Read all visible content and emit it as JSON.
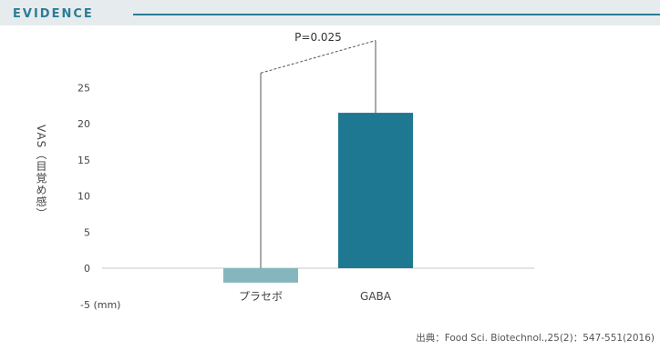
{
  "header": {
    "label": "EVIDENCE"
  },
  "source": "出典：Food Sci. Biotechnol.,25(2)：547-551(2016)",
  "colors": {
    "accent": "#2b7d95",
    "placebo": "#86b6bd",
    "gaba": "#1f7892"
  },
  "chart_data": {
    "type": "bar",
    "categories": [
      "プラセボ",
      "GABA"
    ],
    "values": [
      -2,
      21.5
    ],
    "ylabel": "VAS（目覚め感）",
    "yunit": "(mm)",
    "yticks": [
      -5,
      0,
      5,
      10,
      15,
      20,
      25
    ],
    "ytick_labels": [
      "-5 (mm)",
      "0",
      "5",
      "10",
      "15",
      "20",
      "25"
    ],
    "ylim": [
      -5,
      28
    ],
    "grid": false,
    "annotation": {
      "text": "P=0.025",
      "between": [
        "プラセボ",
        "GABA"
      ],
      "bracket_heights": [
        27,
        31.5
      ]
    }
  }
}
